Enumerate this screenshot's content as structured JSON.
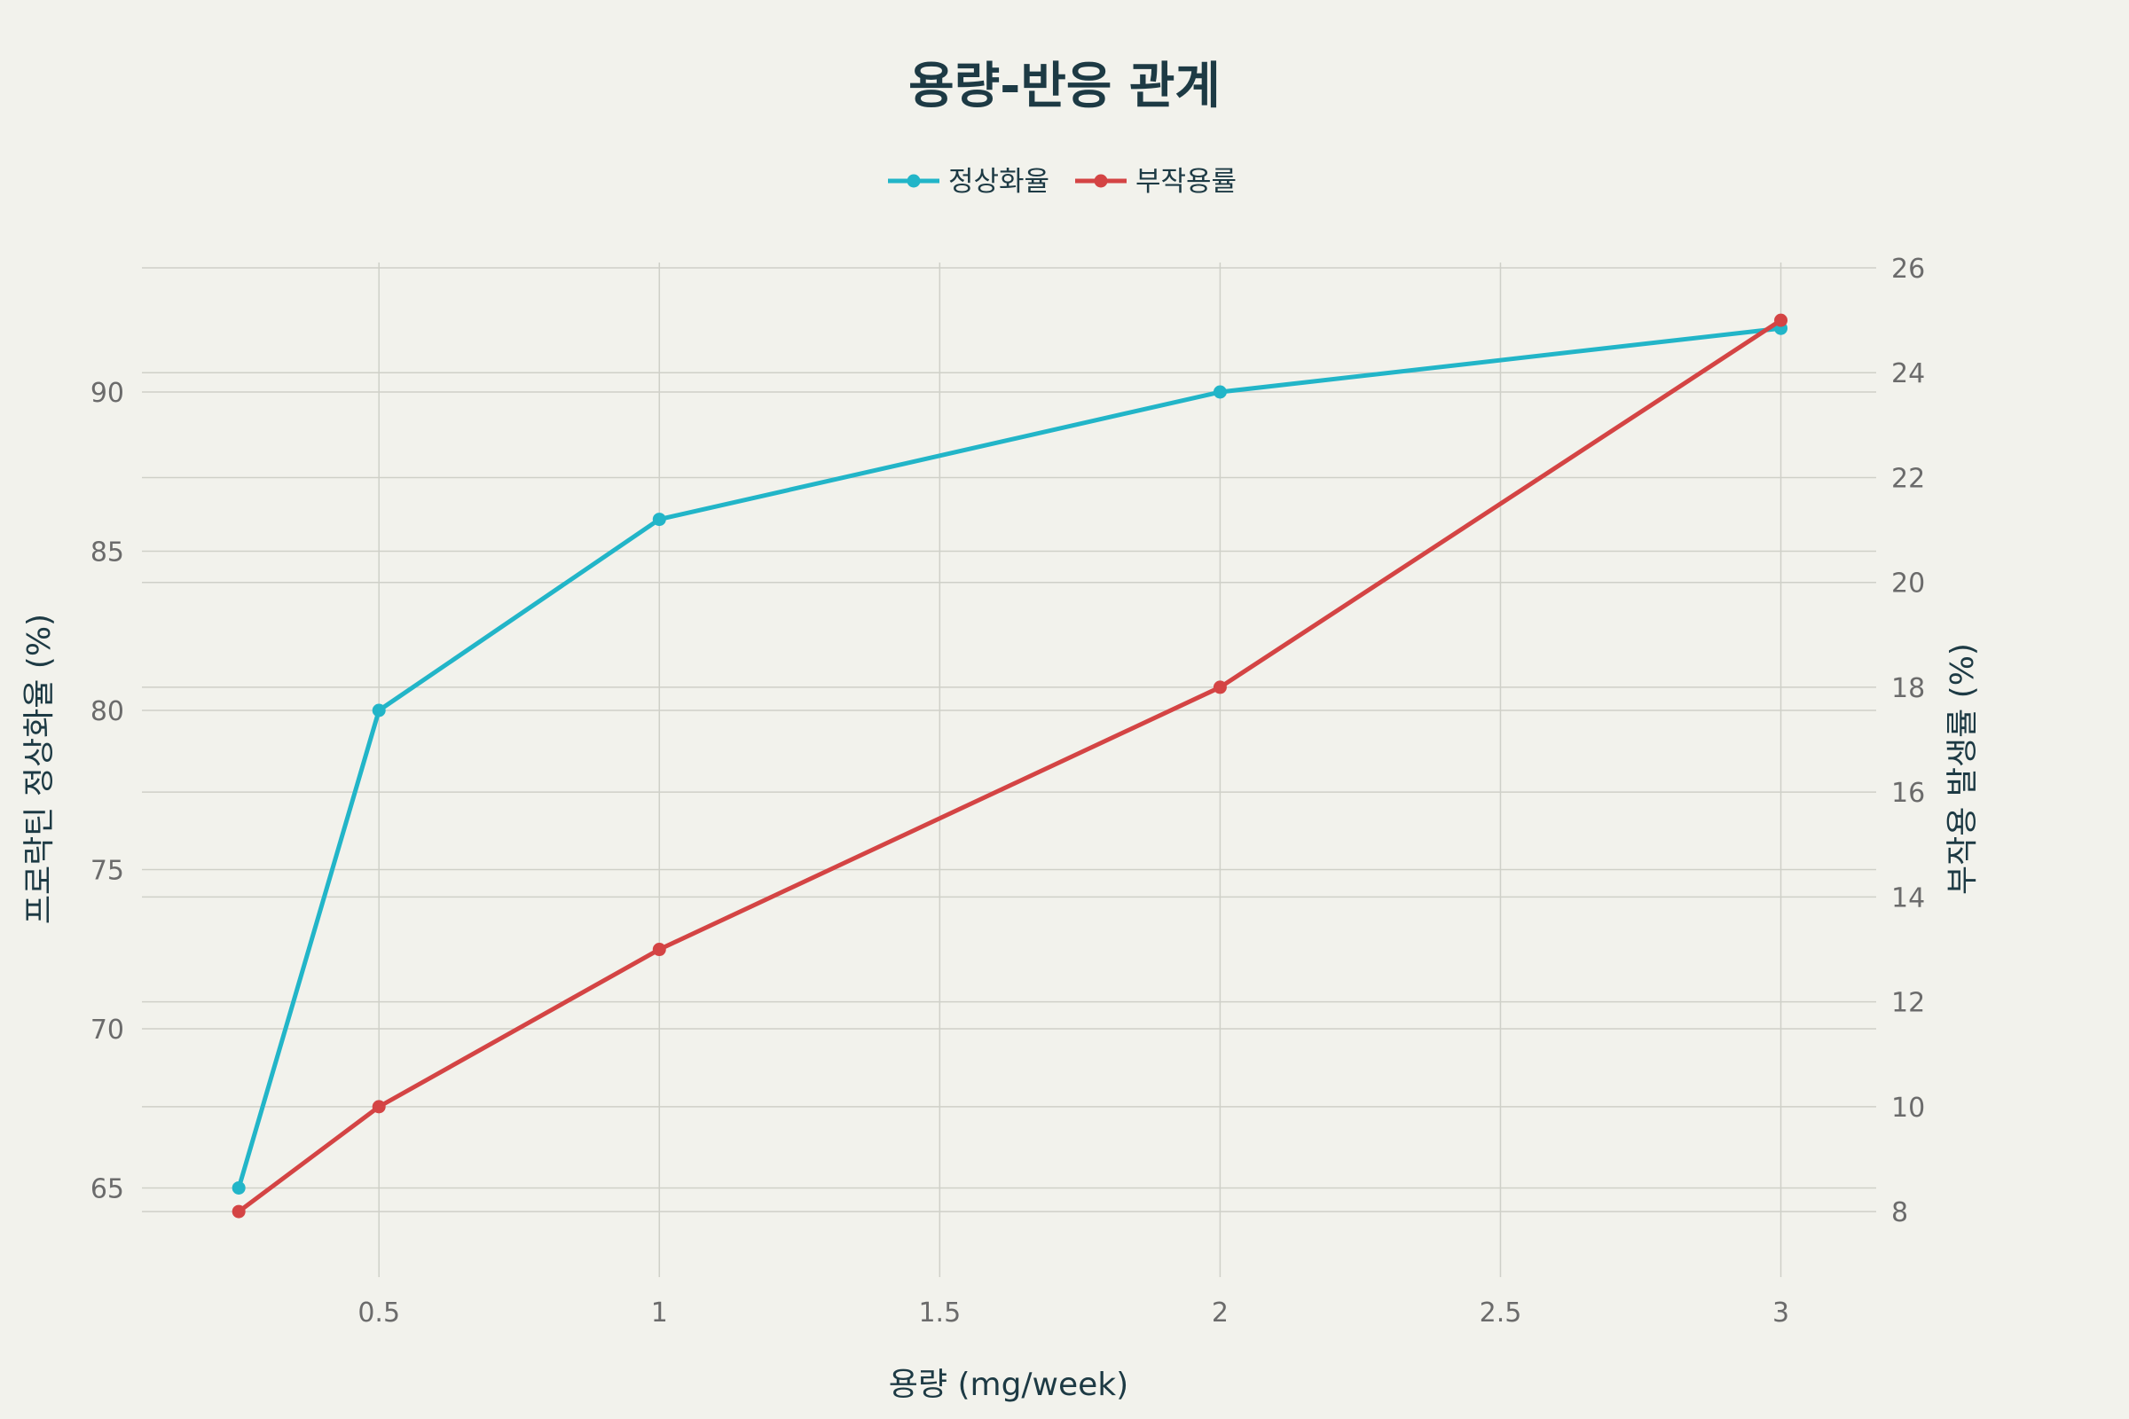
{
  "chart_data": {
    "type": "line",
    "title": "용량-반응 관계",
    "xlabel": "용량 (mg/week)",
    "ylabel_left": "프로락틴 정상화율 (%)",
    "ylabel_right": "부작용 발생률 (%)",
    "x": [
      0.25,
      0.5,
      1,
      2,
      3
    ],
    "x_ticks": [
      "0.5",
      "1",
      "1.5",
      "2",
      "2.5",
      "3"
    ],
    "x_tick_values": [
      0.5,
      1,
      1.5,
      2,
      2.5,
      3
    ],
    "xlim": [
      0.0773,
      3.17
    ],
    "y_left_ticks": [
      65,
      70,
      75,
      80,
      85,
      90
    ],
    "ylim_left": [
      62.2,
      93.9
    ],
    "y_right_ticks": [
      8,
      10,
      12,
      14,
      16,
      18,
      20,
      22,
      24,
      26
    ],
    "ylim_right": [
      6.75,
      26.0
    ],
    "grid": true,
    "legend_position": "top-center",
    "series": [
      {
        "name": "정상화율",
        "axis": "left",
        "color": "#22b5c8",
        "values": [
          65,
          80,
          86,
          90,
          92
        ]
      },
      {
        "name": "부작용률",
        "axis": "right",
        "color": "#d44444",
        "values": [
          8,
          10,
          13,
          18,
          25
        ]
      }
    ]
  }
}
